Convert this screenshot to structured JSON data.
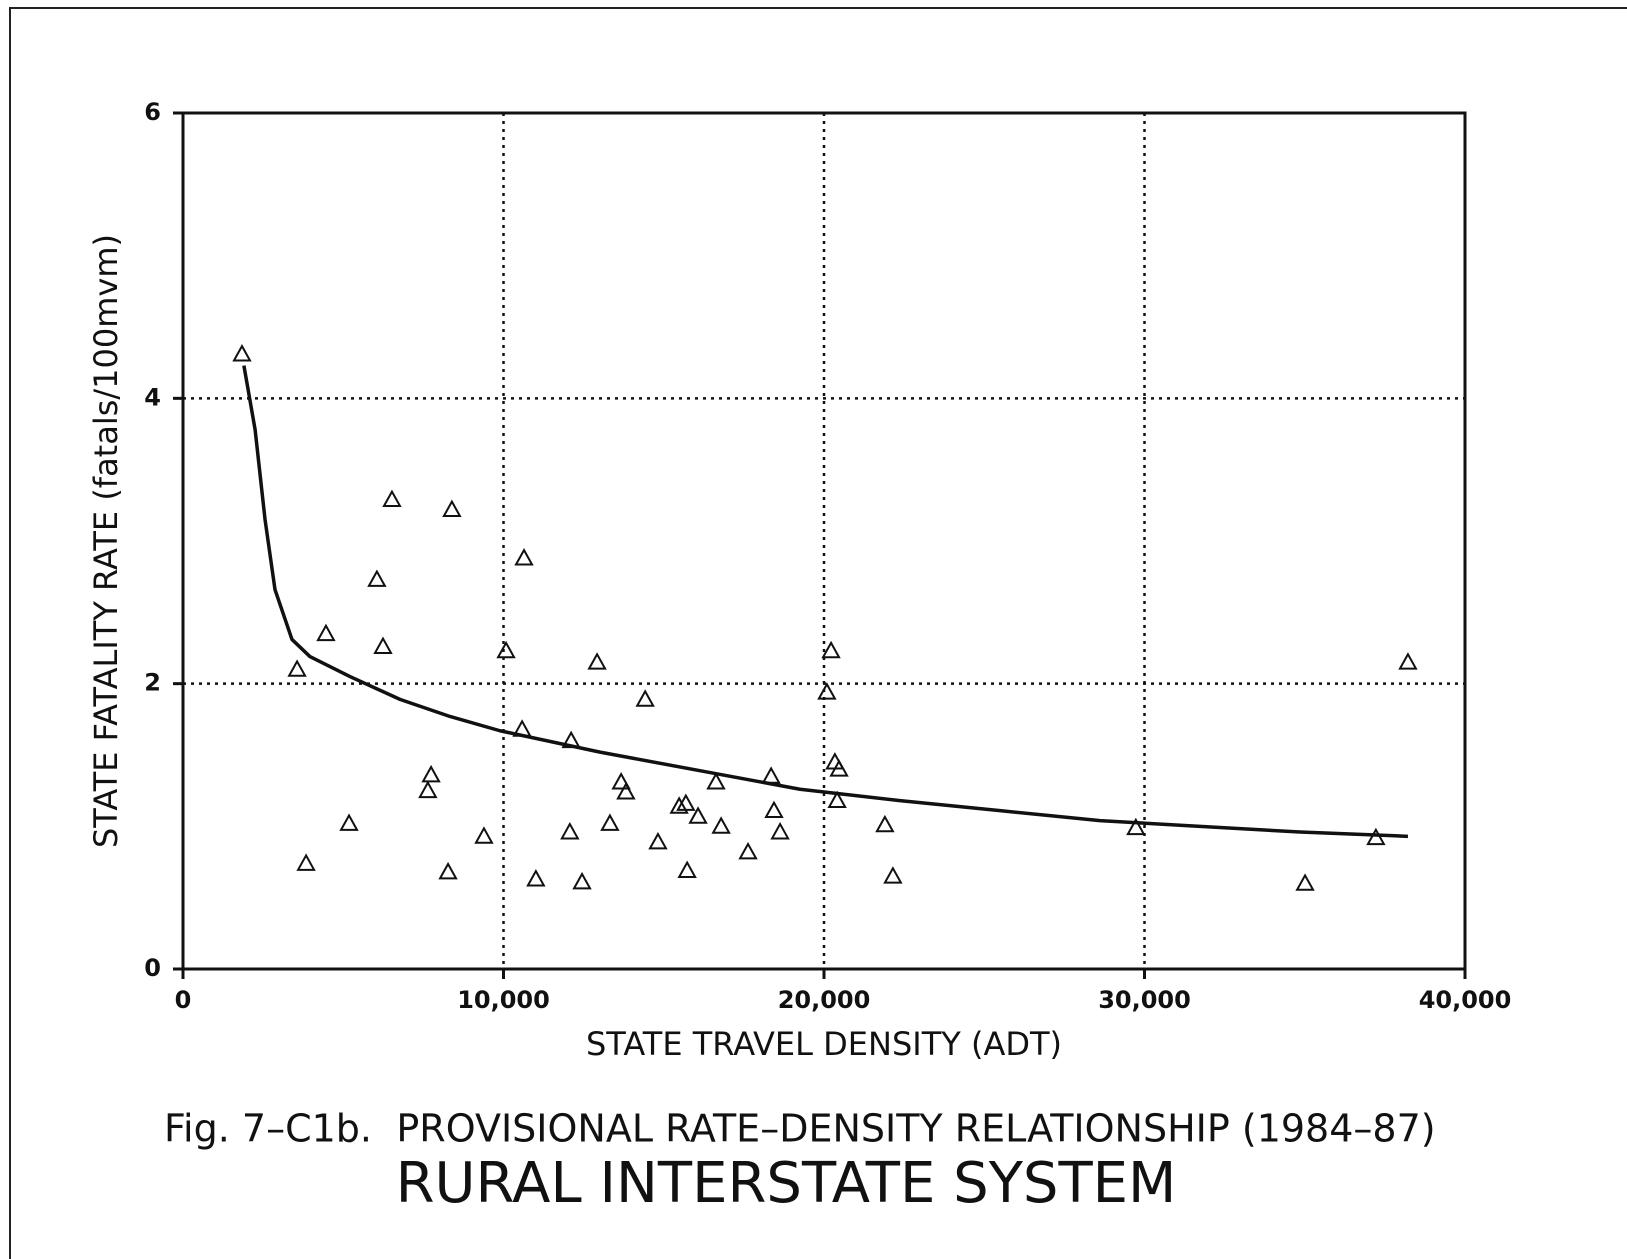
{
  "chart_data": {
    "type": "scatter",
    "y_label": "STATE FATALITY RATE (fatals/100mvm)",
    "x_label": "STATE TRAVEL DENSITY (ADT)",
    "caption_label": "Fig. 7–C1b.",
    "caption": "PROVISIONAL RATE–DENSITY RELATIONSHIP (1984–87)",
    "title": "RURAL INTERSTATE SYSTEM",
    "xlim": [
      0,
      40000
    ],
    "ylim": [
      0,
      6
    ],
    "xticks": [
      0,
      {
        "value": 10000,
        "label": "10,000"
      },
      {
        "value": 20000,
        "label": "20,000"
      },
      {
        "value": 30000,
        "label": "30,000"
      },
      {
        "value": 40000,
        "label": "40,000"
      }
    ],
    "yticks": [
      0,
      2,
      4,
      6
    ],
    "grid": true,
    "series": [
      {
        "type": "scatter",
        "color": "#111111",
        "x": [
          1840,
          3560,
          3840,
          4460,
          5180,
          6050,
          6240,
          6520,
          7640,
          7740,
          8270,
          8390,
          9390,
          10080,
          10580,
          10640,
          11010,
          12070,
          12110,
          12450,
          12920,
          13320,
          13670,
          13820,
          14420,
          14820,
          15480,
          15690,
          15730,
          16070,
          16630,
          16790,
          17630,
          18350,
          18440,
          18630,
          20090,
          20220,
          20340,
          20470,
          20410,
          21900,
          22150,
          29730,
          35010,
          37220,
          38220
        ],
        "values": [
          4.31,
          2.1,
          0.74,
          2.35,
          1.02,
          2.73,
          2.26,
          3.29,
          1.25,
          1.36,
          0.68,
          3.22,
          0.93,
          2.23,
          1.68,
          2.88,
          0.63,
          0.96,
          1.6,
          0.61,
          2.15,
          1.02,
          1.31,
          1.24,
          1.89,
          0.89,
          1.14,
          1.16,
          0.69,
          1.07,
          1.31,
          1.0,
          0.82,
          1.35,
          1.11,
          0.96,
          1.94,
          2.23,
          1.45,
          1.4,
          1.18,
          1.01,
          0.65,
          0.99,
          0.6,
          0.92,
          2.15
        ]
      },
      {
        "type": "line",
        "color": "#111111",
        "x": [
          1900,
          2250,
          2560,
          2870,
          3400,
          3960,
          5210,
          6770,
          8330,
          9890,
          13010,
          16130,
          19250,
          22370,
          25490,
          28610,
          31730,
          34850,
          38220
        ],
        "values": [
          4.23,
          3.78,
          3.15,
          2.66,
          2.31,
          2.19,
          2.05,
          1.89,
          1.77,
          1.67,
          1.52,
          1.39,
          1.26,
          1.18,
          1.11,
          1.04,
          1.0,
          0.96,
          0.93
        ]
      }
    ]
  }
}
